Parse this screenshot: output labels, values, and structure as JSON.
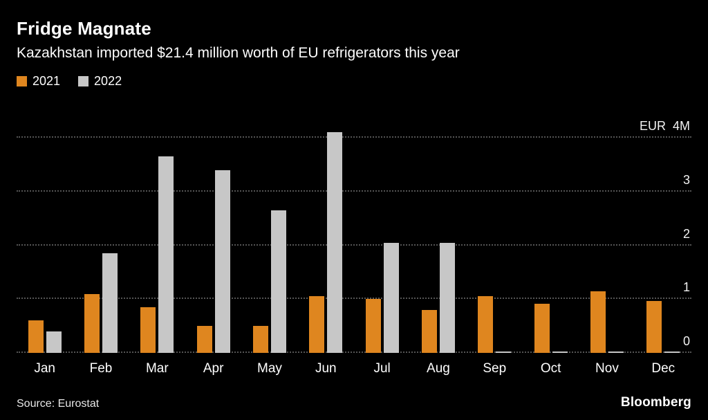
{
  "header": {
    "title": "Fridge Magnate",
    "subtitle": "Kazakhstan imported $21.4 million worth of EU refrigerators this year"
  },
  "legend": {
    "items": [
      {
        "label": "2021",
        "color": "#df861f"
      },
      {
        "label": "2022",
        "color": "#c7c7c7"
      }
    ]
  },
  "axis": {
    "top_label": "EUR  4M",
    "ticks": [
      4,
      3,
      2,
      1,
      0
    ],
    "range_max": 4.35
  },
  "chart_data": {
    "type": "bar",
    "title": "Fridge Magnate",
    "subtitle": "Kazakhstan imported $21.4 million worth of EU refrigerators this year",
    "ylabel": "EUR millions",
    "ylim": [
      0,
      4.35
    ],
    "grid": true,
    "legend_position": "top-left",
    "categories": [
      "Jan",
      "Feb",
      "Mar",
      "Apr",
      "May",
      "Jun",
      "Jul",
      "Aug",
      "Sep",
      "Oct",
      "Nov",
      "Dec"
    ],
    "series": [
      {
        "name": "2021",
        "color": "#df861f",
        "values": [
          0.6,
          1.1,
          0.85,
          0.5,
          0.5,
          1.05,
          1.0,
          0.8,
          1.05,
          0.92,
          1.15,
          0.97
        ]
      },
      {
        "name": "2022",
        "color": "#c7c7c7",
        "values": [
          0.4,
          1.85,
          3.65,
          3.4,
          2.65,
          4.1,
          2.05,
          2.05,
          0.03,
          0.02,
          0.02,
          0.03
        ]
      }
    ]
  },
  "footer": {
    "source": "Source: Eurostat",
    "brand": "Bloomberg"
  }
}
